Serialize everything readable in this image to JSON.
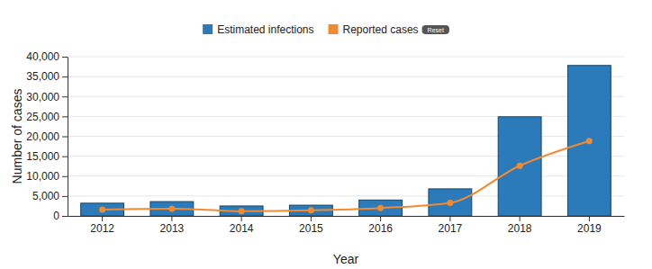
{
  "chart_data": {
    "type": "bar",
    "x_label": "Year",
    "y_label": "Number of cases",
    "categories": [
      "2012",
      "2013",
      "2014",
      "2015",
      "2016",
      "2017",
      "2018",
      "2019"
    ],
    "series": [
      {
        "name": "Estimated infections",
        "type": "bar",
        "color": "#2b7bba",
        "values": [
          3200,
          3600,
          2500,
          2700,
          4000,
          6800,
          24900,
          37800
        ]
      },
      {
        "name": "Reported cases",
        "type": "line",
        "color": "#f28a30",
        "marker": "circle",
        "values": [
          1600,
          1800,
          1200,
          1400,
          2000,
          3300,
          12600,
          18800
        ]
      }
    ],
    "ylim": [
      0,
      40000
    ],
    "yticks": [
      0,
      {
        "value": 5000,
        "label": "5,000"
      },
      {
        "value": 10000,
        "label": "10,000"
      },
      {
        "value": 15000,
        "label": "15,000"
      },
      {
        "value": 20000,
        "label": "20,000"
      },
      {
        "value": 25000,
        "label": "25,000"
      },
      {
        "value": 30000,
        "label": "30,000"
      },
      {
        "value": 35000,
        "label": "35,000"
      },
      {
        "value": 40000,
        "label": "40,000"
      }
    ],
    "grid": true,
    "legend": "top",
    "annotations": [
      "Reset"
    ]
  }
}
